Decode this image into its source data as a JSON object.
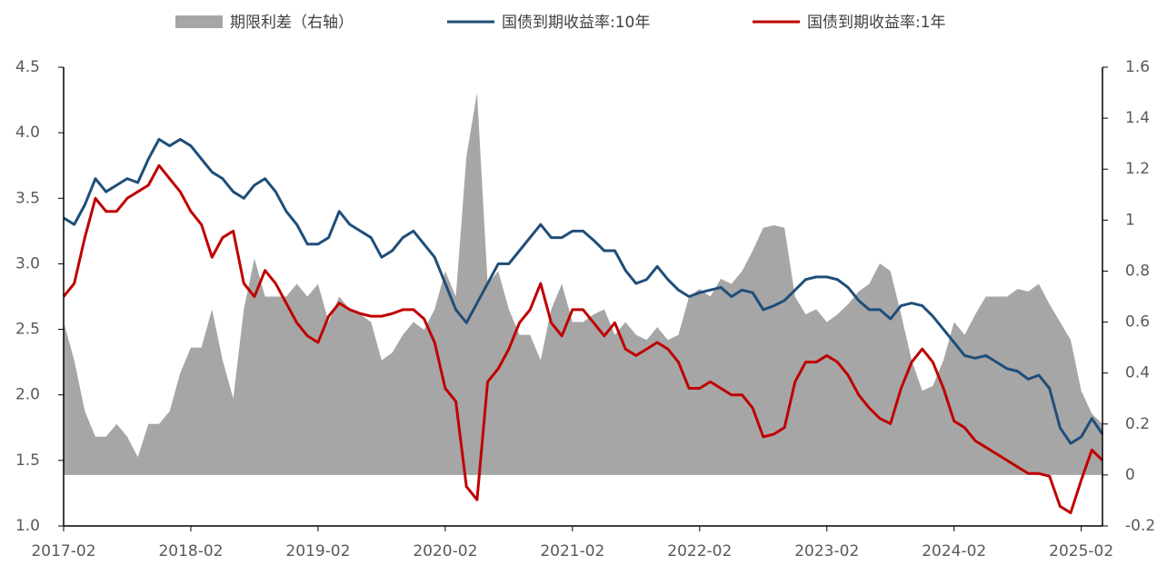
{
  "chart_data": {
    "type": "line",
    "x": [
      "2017-02",
      "2017-03",
      "2017-04",
      "2017-05",
      "2017-06",
      "2017-07",
      "2017-08",
      "2017-09",
      "2017-10",
      "2017-11",
      "2017-12",
      "2018-01",
      "2018-02",
      "2018-03",
      "2018-04",
      "2018-05",
      "2018-06",
      "2018-07",
      "2018-08",
      "2018-09",
      "2018-10",
      "2018-11",
      "2018-12",
      "2019-01",
      "2019-02",
      "2019-03",
      "2019-04",
      "2019-05",
      "2019-06",
      "2019-07",
      "2019-08",
      "2019-09",
      "2019-10",
      "2019-11",
      "2019-12",
      "2020-01",
      "2020-02",
      "2020-03",
      "2020-04",
      "2020-05",
      "2020-06",
      "2020-07",
      "2020-08",
      "2020-09",
      "2020-10",
      "2020-11",
      "2020-12",
      "2021-01",
      "2021-02",
      "2021-03",
      "2021-04",
      "2021-05",
      "2021-06",
      "2021-07",
      "2021-08",
      "2021-09",
      "2021-10",
      "2021-11",
      "2021-12",
      "2022-01",
      "2022-02",
      "2022-03",
      "2022-04",
      "2022-05",
      "2022-06",
      "2022-07",
      "2022-08",
      "2022-09",
      "2022-10",
      "2022-11",
      "2022-12",
      "2023-01",
      "2023-02",
      "2023-03",
      "2023-04",
      "2023-05",
      "2023-06",
      "2023-07",
      "2023-08",
      "2023-09",
      "2023-10",
      "2023-11",
      "2023-12",
      "2024-01",
      "2024-02",
      "2024-03",
      "2024-04",
      "2024-05",
      "2024-06",
      "2024-07",
      "2024-08",
      "2024-09",
      "2024-10",
      "2024-11",
      "2024-12",
      "2025-01",
      "2025-02",
      "2025-03",
      "2025-04"
    ],
    "series": [
      {
        "name": "期限利差（右轴）",
        "color": "#a6a6a6",
        "axis": "y2",
        "kind": "area",
        "values": [
          0.6,
          0.45,
          0.25,
          0.15,
          0.15,
          0.2,
          0.15,
          0.07,
          0.2,
          0.2,
          0.25,
          0.4,
          0.5,
          0.5,
          0.65,
          0.45,
          0.3,
          0.65,
          0.85,
          0.7,
          0.7,
          0.7,
          0.75,
          0.7,
          0.75,
          0.6,
          0.7,
          0.65,
          0.63,
          0.6,
          0.45,
          0.48,
          0.55,
          0.6,
          0.57,
          0.65,
          0.8,
          0.7,
          1.25,
          1.5,
          0.75,
          0.8,
          0.65,
          0.55,
          0.55,
          0.45,
          0.65,
          0.75,
          0.6,
          0.6,
          0.63,
          0.65,
          0.55,
          0.6,
          0.55,
          0.53,
          0.58,
          0.53,
          0.55,
          0.7,
          0.73,
          0.7,
          0.77,
          0.75,
          0.8,
          0.88,
          0.97,
          0.98,
          0.97,
          0.7,
          0.63,
          0.65,
          0.6,
          0.63,
          0.67,
          0.72,
          0.75,
          0.83,
          0.8,
          0.63,
          0.45,
          0.33,
          0.35,
          0.45,
          0.6,
          0.55,
          0.63,
          0.7,
          0.7,
          0.7,
          0.73,
          0.72,
          0.75,
          0.67,
          0.6,
          0.53,
          0.33,
          0.24,
          0.2
        ]
      },
      {
        "name": "国债到期收益率:10年",
        "color": "#1f4e79",
        "kind": "line",
        "values": [
          3.35,
          3.3,
          3.45,
          3.65,
          3.55,
          3.6,
          3.65,
          3.62,
          3.8,
          3.95,
          3.9,
          3.95,
          3.9,
          3.8,
          3.7,
          3.65,
          3.55,
          3.5,
          3.6,
          3.65,
          3.55,
          3.4,
          3.3,
          3.15,
          3.15,
          3.2,
          3.4,
          3.3,
          3.25,
          3.2,
          3.05,
          3.1,
          3.2,
          3.25,
          3.15,
          3.05,
          2.85,
          2.65,
          2.55,
          2.7,
          2.85,
          3.0,
          3.0,
          3.1,
          3.2,
          3.3,
          3.2,
          3.2,
          3.25,
          3.25,
          3.18,
          3.1,
          3.1,
          2.95,
          2.85,
          2.88,
          2.98,
          2.88,
          2.8,
          2.75,
          2.78,
          2.8,
          2.82,
          2.75,
          2.8,
          2.78,
          2.65,
          2.68,
          2.72,
          2.8,
          2.88,
          2.9,
          2.9,
          2.88,
          2.82,
          2.72,
          2.65,
          2.65,
          2.58,
          2.68,
          2.7,
          2.68,
          2.6,
          2.5,
          2.4,
          2.3,
          2.28,
          2.3,
          2.25,
          2.2,
          2.18,
          2.12,
          2.15,
          2.05,
          1.75,
          1.63,
          1.68,
          1.82,
          1.7
        ]
      },
      {
        "name": "国债到期收益率:1年",
        "color": "#c00000",
        "kind": "line",
        "values": [
          2.75,
          2.85,
          3.2,
          3.5,
          3.4,
          3.4,
          3.5,
          3.55,
          3.6,
          3.75,
          3.65,
          3.55,
          3.4,
          3.3,
          3.05,
          3.2,
          3.25,
          2.85,
          2.75,
          2.95,
          2.85,
          2.7,
          2.55,
          2.45,
          2.4,
          2.6,
          2.7,
          2.65,
          2.62,
          2.6,
          2.6,
          2.62,
          2.65,
          2.65,
          2.58,
          2.4,
          2.05,
          1.95,
          1.3,
          1.2,
          2.1,
          2.2,
          2.35,
          2.55,
          2.65,
          2.85,
          2.55,
          2.45,
          2.65,
          2.65,
          2.55,
          2.45,
          2.55,
          2.35,
          2.3,
          2.35,
          2.4,
          2.35,
          2.25,
          2.05,
          2.05,
          2.1,
          2.05,
          2.0,
          2.0,
          1.9,
          1.68,
          1.7,
          1.75,
          2.1,
          2.25,
          2.25,
          2.3,
          2.25,
          2.15,
          2.0,
          1.9,
          1.82,
          1.78,
          2.05,
          2.25,
          2.35,
          2.25,
          2.05,
          1.8,
          1.75,
          1.65,
          1.6,
          1.55,
          1.5,
          1.45,
          1.4,
          1.4,
          1.38,
          1.15,
          1.1,
          1.35,
          1.58,
          1.5
        ]
      }
    ],
    "xticks": [
      "2017-02",
      "2018-02",
      "2019-02",
      "2020-02",
      "2021-02",
      "2022-02",
      "2023-02",
      "2024-02",
      "2025-02"
    ],
    "ylim": [
      1.0,
      4.5
    ],
    "yticks": [
      {
        "value": 1.0,
        "label": "1.0"
      },
      1.5,
      {
        "value": 2.0,
        "label": "2.0"
      },
      2.5,
      {
        "value": 3.0,
        "label": "3.0"
      },
      3.5,
      {
        "value": 4.0,
        "label": "4.0"
      },
      4.5
    ],
    "y2lim": [
      -0.2,
      1.6
    ],
    "y2ticks": [
      -0.2,
      0,
      0.2,
      0.4,
      0.6,
      0.8,
      1,
      1.2,
      1.4,
      1.6
    ],
    "legend": "top"
  }
}
